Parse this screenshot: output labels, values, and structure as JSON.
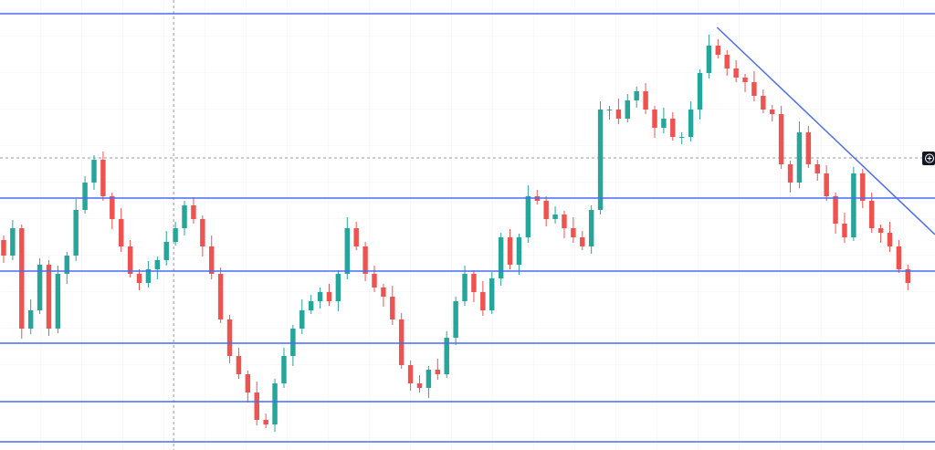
{
  "chart_data": {
    "type": "candlestick",
    "xlim": [
      -0.4,
      103
    ],
    "ylim": [
      0,
      493
    ],
    "up_color": "#26a69a",
    "down_color": "#ef5350",
    "line_color": "#4a6cf0",
    "open": [
      230,
      213,
      243,
      133,
      153,
      203,
      133,
      193,
      213,
      263,
      293,
      318,
      278,
      253,
      223,
      193,
      183,
      198,
      208,
      228,
      243,
      268,
      253,
      223,
      193,
      143,
      103,
      83,
      63,
      33,
      28,
      73,
      103,
      133,
      153,
      163,
      173,
      163,
      193,
      243,
      223,
      193,
      178,
      168,
      143,
      93,
      73,
      68,
      88,
      83,
      123,
      163,
      193,
      173,
      153,
      188,
      233,
      203,
      233,
      278,
      273,
      253,
      258,
      243,
      233,
      223,
      263,
      373,
      373,
      363,
      383,
      393,
      373,
      353,
      363,
      343,
      343,
      373,
      413,
      443,
      433,
      418,
      408,
      403,
      388,
      373,
      368,
      313,
      293,
      348,
      313,
      303,
      278,
      248,
      233,
      303,
      273,
      243,
      238,
      223,
      198
    ],
    "high": [
      235,
      252,
      247,
      165,
      210,
      208,
      202,
      217,
      275,
      300,
      323,
      327,
      282,
      265,
      230,
      198,
      207,
      212,
      240,
      250,
      273,
      277,
      257,
      235,
      200,
      148,
      112,
      87,
      75,
      40,
      78,
      112,
      137,
      165,
      170,
      178,
      182,
      197,
      255,
      250,
      228,
      202,
      182,
      180,
      150,
      98,
      82,
      92,
      100,
      130,
      168,
      202,
      197,
      185,
      195,
      238,
      242,
      237,
      290,
      285,
      278,
      267,
      262,
      255,
      240,
      268,
      382,
      377,
      385,
      390,
      398,
      402,
      377,
      375,
      370,
      348,
      382,
      417,
      455,
      450,
      438,
      427,
      412,
      415,
      395,
      378,
      377,
      317,
      360,
      355,
      318,
      312,
      282,
      260,
      310,
      308,
      282,
      247,
      250,
      230,
      203
    ],
    "low": [
      205,
      208,
      122,
      127,
      149,
      125,
      128,
      182,
      207,
      259,
      285,
      273,
      242,
      217,
      189,
      175,
      178,
      187,
      202,
      224,
      235,
      248,
      212,
      187,
      139,
      95,
      78,
      52,
      27,
      24,
      20,
      68,
      92,
      127,
      149,
      155,
      158,
      152,
      187,
      219,
      185,
      173,
      157,
      137,
      89,
      65,
      63,
      57,
      77,
      79,
      115,
      158,
      162,
      147,
      149,
      180,
      198,
      192,
      227,
      269,
      245,
      248,
      232,
      227,
      219,
      215,
      258,
      362,
      357,
      359,
      375,
      368,
      342,
      347,
      339,
      335,
      338,
      362,
      407,
      429,
      410,
      403,
      392,
      382,
      369,
      360,
      308,
      282,
      287,
      309,
      295,
      273,
      237,
      227,
      229,
      265,
      238,
      227,
      217,
      194,
      175
    ],
    "close": [
      213,
      243,
      133,
      153,
      203,
      133,
      193,
      213,
      263,
      293,
      318,
      278,
      253,
      223,
      193,
      183,
      198,
      208,
      228,
      243,
      268,
      253,
      223,
      193,
      143,
      103,
      83,
      63,
      33,
      28,
      73,
      103,
      133,
      153,
      163,
      173,
      163,
      193,
      243,
      223,
      193,
      178,
      168,
      143,
      93,
      73,
      68,
      88,
      83,
      123,
      163,
      193,
      173,
      153,
      188,
      233,
      203,
      233,
      278,
      273,
      253,
      258,
      243,
      233,
      223,
      263,
      373,
      373,
      363,
      383,
      393,
      373,
      353,
      363,
      343,
      343,
      373,
      413,
      443,
      433,
      418,
      408,
      403,
      388,
      373,
      368,
      313,
      293,
      348,
      313,
      303,
      278,
      248,
      233,
      303,
      273,
      243,
      238,
      223,
      198,
      183
    ],
    "levels": [
      478,
      276,
      196,
      117,
      53,
      9
    ],
    "trendline": {
      "x": [
        78.9,
        103
      ],
      "y": [
        463,
        236
      ]
    },
    "crosshair": {
      "x": 18.8,
      "y": 320
    }
  }
}
